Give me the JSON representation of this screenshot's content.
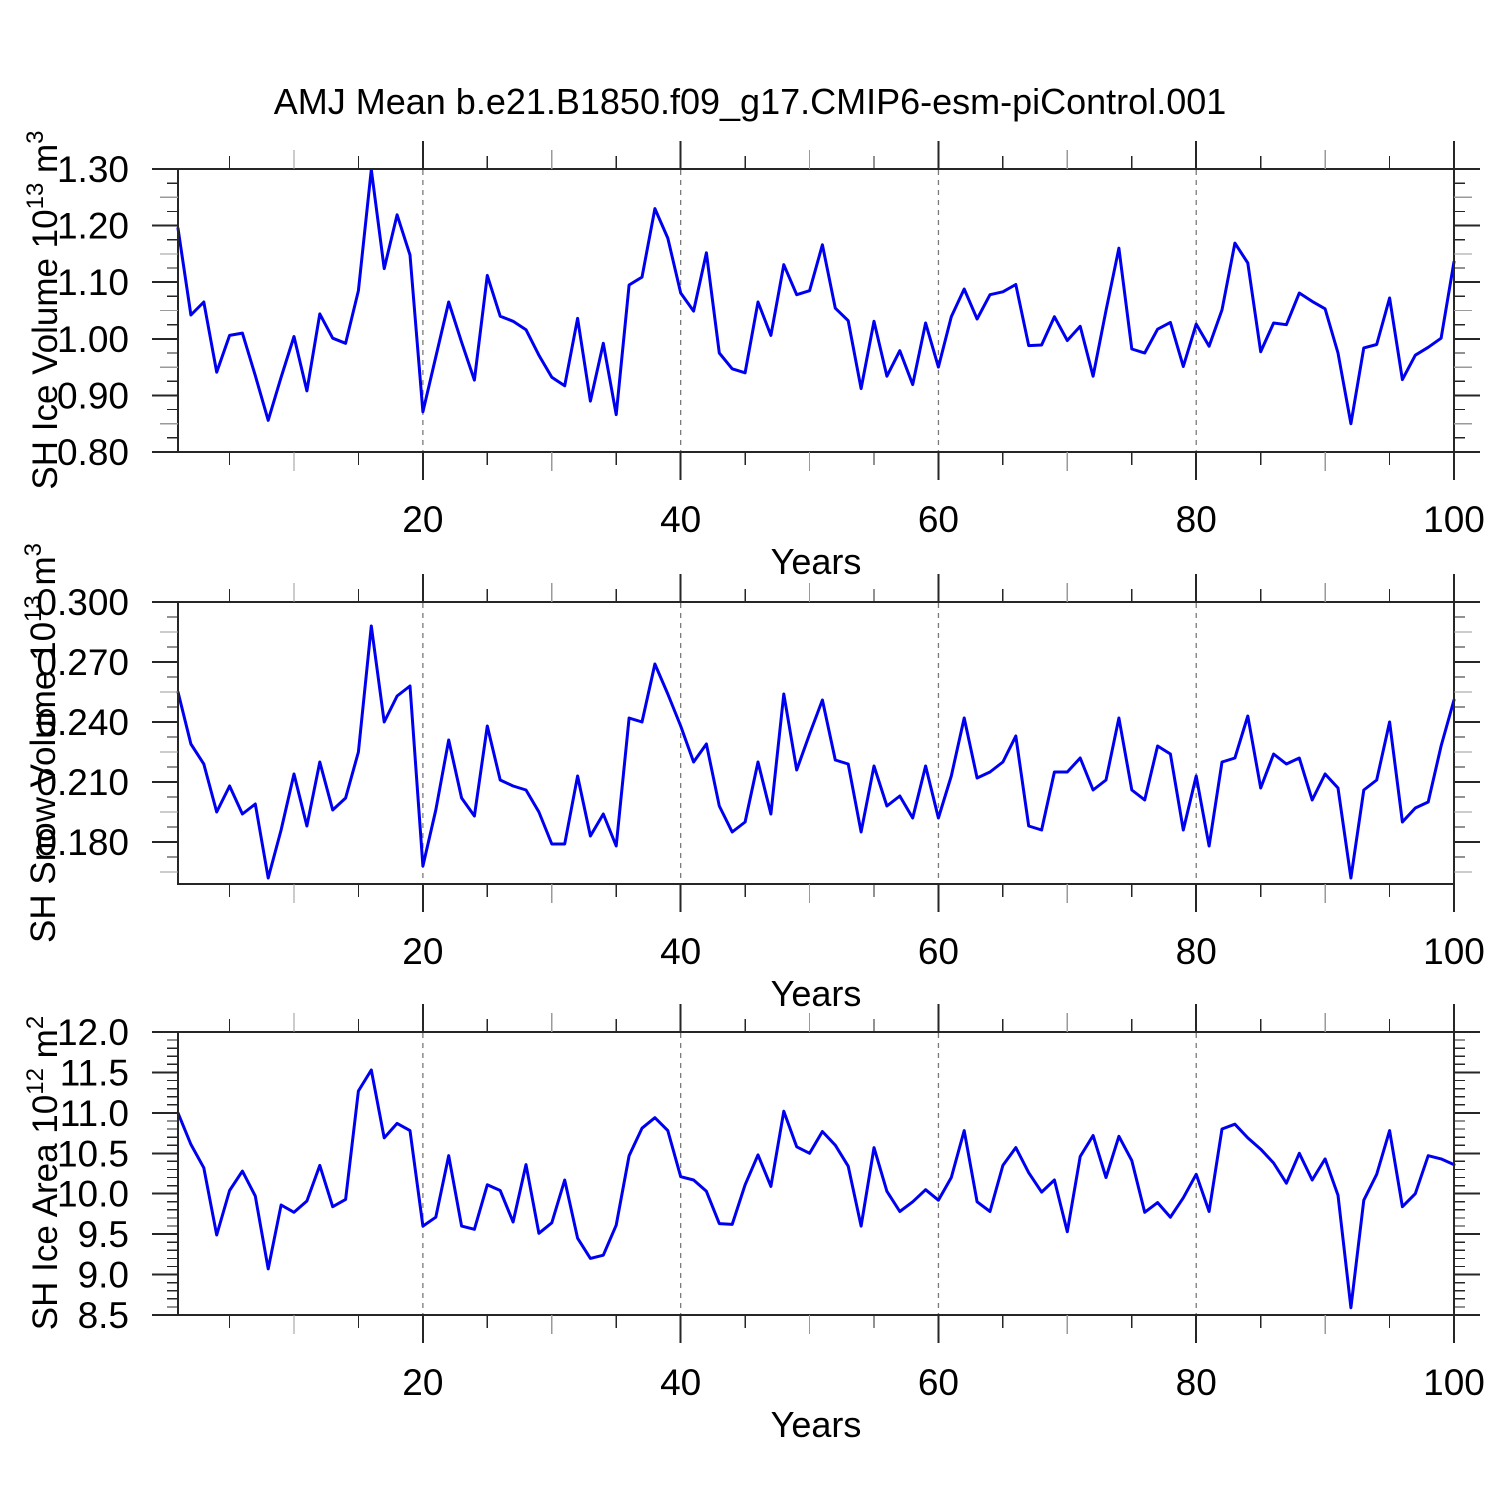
{
  "title": "AMJ Mean b.e21.B1850.f09_g17.CMIP6-esm-piControl.001",
  "xlabel": "Years",
  "years": [
    1,
    2,
    3,
    4,
    5,
    6,
    7,
    8,
    9,
    10,
    11,
    12,
    13,
    14,
    15,
    16,
    17,
    18,
    19,
    20,
    21,
    22,
    23,
    24,
    25,
    26,
    27,
    28,
    29,
    30,
    31,
    32,
    33,
    34,
    35,
    36,
    37,
    38,
    39,
    40,
    41,
    42,
    43,
    44,
    45,
    46,
    47,
    48,
    49,
    50,
    51,
    52,
    53,
    54,
    55,
    56,
    57,
    58,
    59,
    60,
    61,
    62,
    63,
    64,
    65,
    66,
    67,
    68,
    69,
    70,
    71,
    72,
    73,
    74,
    75,
    76,
    77,
    78,
    79,
    80,
    81,
    82,
    83,
    84,
    85,
    86,
    87,
    88,
    89,
    90,
    91,
    92,
    93,
    94,
    95,
    96,
    97,
    98,
    99,
    100
  ],
  "style": {
    "line_color": "#0000f0",
    "axis_color": "#262626",
    "grid_color": "#7a7a7a",
    "mid_tick_color": "#9a9a9a",
    "tick_label_color": "#000000"
  },
  "chart_data": [
    {
      "type": "line",
      "title": "AMJ Mean b.e21.B1850.f09_g17.CMIP6-esm-piControl.001",
      "ylabel": "SH Ice Volume 10^13 m^3",
      "ylabel_parts": [
        "SH Ice Volume 10",
        "13",
        " m",
        "3"
      ],
      "xlabel": "Years",
      "xlim": [
        1,
        100
      ],
      "ylim": [
        0.8,
        1.3
      ],
      "yticks": [
        0.8,
        0.9,
        1.0,
        1.1,
        1.2,
        1.3
      ],
      "ytick_labels": [
        "0.80",
        "0.90",
        "1.00",
        "1.10",
        "1.20",
        "1.30"
      ],
      "yminor_step": 0.025,
      "xticks": [
        20,
        40,
        60,
        80,
        100
      ],
      "xminor_step": 5,
      "grid_x": [
        20,
        40,
        60,
        80
      ],
      "legend": "none",
      "grid": "dashed vertical lines at x = 20, 40, 60, 80",
      "values": [
        1.195,
        1.042,
        1.065,
        0.941,
        1.006,
        1.01,
        0.935,
        0.856,
        0.932,
        1.004,
        0.908,
        1.044,
        1.001,
        0.992,
        1.085,
        1.299,
        1.124,
        1.219,
        1.148,
        0.871,
        0.968,
        1.065,
        0.994,
        0.927,
        1.112,
        1.04,
        1.031,
        1.016,
        0.971,
        0.932,
        0.917,
        1.036,
        0.89,
        0.992,
        0.866,
        1.095,
        1.109,
        1.23,
        1.178,
        1.081,
        1.049,
        1.152,
        0.975,
        0.947,
        0.94,
        1.065,
        1.006,
        1.131,
        1.078,
        1.085,
        1.166,
        1.054,
        1.032,
        0.912,
        1.031,
        0.934,
        0.979,
        0.919,
        1.028,
        0.95,
        1.039,
        1.088,
        1.035,
        1.078,
        1.083,
        1.096,
        0.988,
        0.989,
        1.039,
        0.997,
        1.022,
        0.934,
        1.05,
        1.16,
        0.982,
        0.975,
        1.017,
        1.029,
        0.951,
        1.026,
        0.987,
        1.051,
        1.169,
        1.134,
        0.977,
        1.028,
        1.025,
        1.081,
        1.066,
        1.053,
        0.975,
        0.85,
        0.984,
        0.99,
        1.072,
        0.928,
        0.971,
        0.985,
        1.001,
        1.136
      ]
    },
    {
      "type": "line",
      "title": "AMJ Mean b.e21.B1850.f09_g17.CMIP6-esm-piControl.001",
      "ylabel": "SH Snow Volume 10^13 m^3",
      "ylabel_parts": [
        "SH Snow Volume 10",
        "13",
        " m",
        "3"
      ],
      "xlabel": "Years",
      "xlim": [
        1,
        100
      ],
      "ylim": [
        0.159,
        0.3
      ],
      "yticks": [
        0.18,
        0.21,
        0.24,
        0.27,
        0.3
      ],
      "ytick_labels": [
        "0.180",
        "0.210",
        "0.240",
        "0.270",
        "0.300"
      ],
      "yminor_step": 0.0075,
      "xticks": [
        20,
        40,
        60,
        80,
        100
      ],
      "xminor_step": 5,
      "grid_x": [
        20,
        40,
        60,
        80
      ],
      "legend": "none",
      "grid": "dashed vertical lines at x = 20, 40, 60, 80",
      "values": [
        0.255,
        0.229,
        0.219,
        0.195,
        0.208,
        0.194,
        0.199,
        0.162,
        0.186,
        0.214,
        0.188,
        0.22,
        0.196,
        0.202,
        0.225,
        0.288,
        0.24,
        0.253,
        0.258,
        0.168,
        0.196,
        0.231,
        0.202,
        0.193,
        0.238,
        0.211,
        0.208,
        0.206,
        0.195,
        0.179,
        0.179,
        0.213,
        0.183,
        0.194,
        0.178,
        0.242,
        0.24,
        0.269,
        0.254,
        0.238,
        0.22,
        0.229,
        0.198,
        0.185,
        0.19,
        0.22,
        0.194,
        0.254,
        0.216,
        0.234,
        0.251,
        0.221,
        0.219,
        0.185,
        0.218,
        0.198,
        0.203,
        0.192,
        0.218,
        0.192,
        0.213,
        0.242,
        0.212,
        0.215,
        0.22,
        0.233,
        0.188,
        0.186,
        0.215,
        0.215,
        0.222,
        0.206,
        0.211,
        0.242,
        0.206,
        0.201,
        0.228,
        0.224,
        0.186,
        0.213,
        0.178,
        0.22,
        0.222,
        0.243,
        0.207,
        0.224,
        0.219,
        0.222,
        0.201,
        0.214,
        0.207,
        0.162,
        0.206,
        0.211,
        0.24,
        0.19,
        0.197,
        0.2,
        0.228,
        0.251
      ]
    },
    {
      "type": "line",
      "title": "AMJ Mean b.e21.B1850.f09_g17.CMIP6-esm-piControl.001",
      "ylabel": "SH Ice Area 10^12 m^2",
      "ylabel_parts": [
        "SH Ice Area 10",
        "12",
        " m",
        "2"
      ],
      "xlabel": "Years",
      "xlim": [
        1,
        100
      ],
      "ylim": [
        8.5,
        12.0
      ],
      "yticks": [
        8.5,
        9.0,
        9.5,
        10.0,
        10.5,
        11.0,
        11.5,
        12.0
      ],
      "ytick_labels": [
        "8.5",
        "9.0",
        "9.5",
        "10.0",
        "10.5",
        "11.0",
        "11.5",
        "12.0"
      ],
      "yminor_step": 0.1,
      "xticks": [
        20,
        40,
        60,
        80,
        100
      ],
      "xminor_step": 5,
      "grid_x": [
        20,
        40,
        60,
        80
      ],
      "legend": "none",
      "grid": "dashed vertical lines at x = 20, 40, 60, 80",
      "values": [
        11.0,
        10.61,
        10.32,
        9.49,
        10.04,
        10.28,
        9.97,
        9.07,
        9.86,
        9.77,
        9.91,
        10.35,
        9.84,
        9.93,
        11.27,
        11.53,
        10.69,
        10.87,
        10.78,
        9.6,
        9.71,
        10.47,
        9.6,
        9.56,
        10.11,
        10.04,
        9.65,
        10.36,
        9.51,
        9.64,
        10.17,
        9.45,
        9.2,
        9.24,
        9.61,
        10.47,
        10.81,
        10.94,
        10.78,
        10.21,
        10.17,
        10.03,
        9.63,
        9.62,
        10.11,
        10.48,
        10.09,
        11.02,
        10.58,
        10.5,
        10.77,
        10.6,
        10.34,
        9.6,
        10.57,
        10.03,
        9.78,
        9.9,
        10.05,
        9.92,
        10.2,
        10.78,
        9.9,
        9.78,
        10.35,
        10.57,
        10.26,
        10.02,
        10.17,
        9.53,
        10.46,
        10.72,
        10.2,
        10.71,
        10.41,
        9.77,
        9.89,
        9.71,
        9.95,
        10.24,
        9.78,
        10.8,
        10.86,
        10.69,
        10.55,
        10.38,
        10.13,
        10.5,
        10.17,
        10.43,
        9.98,
        8.59,
        9.92,
        10.24,
        10.78,
        9.84,
        10.0,
        10.47,
        10.43,
        10.36
      ]
    }
  ]
}
